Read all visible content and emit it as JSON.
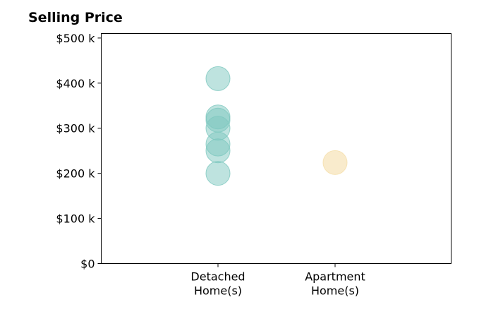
{
  "chart_data": {
    "type": "scatter",
    "title": "Selling Price",
    "xlabel": "",
    "ylabel": "",
    "categories": [
      [
        "Detached",
        "Home(s)"
      ],
      [
        "Apartment",
        "Home(s)"
      ]
    ],
    "ylim": [
      0,
      510000
    ],
    "yticks": [
      {
        "value": 0,
        "label": "$0"
      },
      {
        "value": 100000,
        "label": "$100 k"
      },
      {
        "value": 200000,
        "label": "$200 k"
      },
      {
        "value": 300000,
        "label": "$300 k"
      },
      {
        "value": 400000,
        "label": "$400 k"
      },
      {
        "value": 500000,
        "label": "$500 k"
      }
    ],
    "grid": false,
    "series": [
      {
        "category": 0,
        "color": "#7ec8bf",
        "values": [
          410000,
          325000,
          318000,
          300000,
          265000,
          250000,
          200000
        ]
      },
      {
        "category": 1,
        "color": "#f5deaa",
        "values": [
          224000
        ]
      }
    ]
  }
}
